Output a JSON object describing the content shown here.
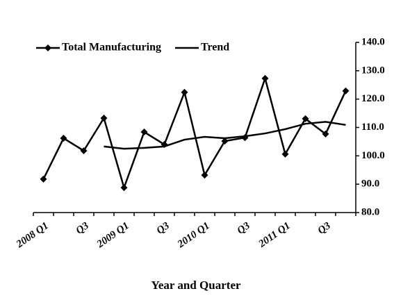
{
  "chart_data": {
    "type": "line",
    "x_label": "Year and Quarter",
    "categories": [
      "2008 Q1",
      null,
      "Q3",
      null,
      "2009 Q1",
      null,
      "Q3",
      null,
      "2010 Q1",
      null,
      "Q3",
      null,
      "2011 Q1",
      null,
      "Q3",
      null
    ],
    "series": [
      {
        "name": "Total Manufacturing",
        "color": "#000000",
        "marker": "diamond",
        "values": [
          91.8,
          106.2,
          101.8,
          113.3,
          88.8,
          108.4,
          104.0,
          122.4,
          93.2,
          105.2,
          106.4,
          127.3,
          100.6,
          113.1,
          107.7,
          122.9
        ]
      },
      {
        "name": "Trend",
        "color": "#000000",
        "marker": null,
        "values": [
          null,
          null,
          null,
          103.3,
          102.5,
          102.8,
          103.3,
          105.7,
          106.7,
          106.2,
          106.9,
          107.9,
          109.4,
          111.3,
          112.0,
          110.9
        ]
      }
    ],
    "ylim": [
      80,
      140
    ],
    "yticks": [
      {
        "value": 80,
        "label": "80.0"
      },
      {
        "value": 90,
        "label": "90.0"
      },
      {
        "value": 100,
        "label": "100.0"
      },
      {
        "value": 110,
        "label": "110.0"
      },
      {
        "value": 120,
        "label": "120.0"
      },
      {
        "value": 130,
        "label": "130.0"
      },
      {
        "value": 140,
        "label": "140.0"
      }
    ],
    "y_axis_side": "right",
    "grid": false,
    "legend_position": "top-left"
  }
}
